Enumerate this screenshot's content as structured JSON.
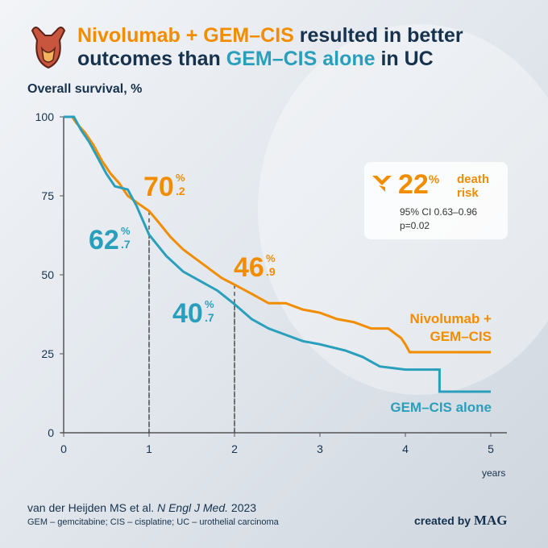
{
  "header": {
    "title_parts": [
      "Nivolumab + GEM–CIS",
      " resulted in better outcomes than ",
      "GEM–CIS alone",
      " in UC"
    ]
  },
  "chart_data": {
    "type": "line",
    "ylabel": "Overall survival, %",
    "xlabel": "years",
    "xlim": [
      0,
      5
    ],
    "ylim": [
      0,
      100
    ],
    "xticks": [
      0,
      1,
      2,
      3,
      4,
      5
    ],
    "yticks": [
      0,
      25,
      50,
      75,
      100
    ],
    "grid": false,
    "series": [
      {
        "name": "Nivolumab + GEM–CIS",
        "color": "#f28c00",
        "x": [
          0,
          0.1,
          0.15,
          0.25,
          0.35,
          0.45,
          0.55,
          0.65,
          0.75,
          0.85,
          1,
          1.1,
          1.25,
          1.4,
          1.55,
          1.7,
          1.85,
          2,
          2.2,
          2.4,
          2.6,
          2.8,
          3,
          3.2,
          3.4,
          3.6,
          3.8,
          3.95,
          4,
          4.05,
          4.5,
          5
        ],
        "values": [
          100,
          100,
          98,
          95,
          91,
          86,
          82,
          79,
          75,
          73,
          70.2,
          67,
          62,
          58,
          55,
          52,
          49,
          46.9,
          44,
          41,
          41,
          39,
          38,
          36,
          35,
          33,
          33,
          30,
          28,
          25.5,
          25.5,
          25.5
        ]
      },
      {
        "name": "GEM–CIS alone",
        "color": "#2a9fbc",
        "x": [
          0,
          0.12,
          0.2,
          0.3,
          0.4,
          0.5,
          0.6,
          0.75,
          0.85,
          1,
          1.2,
          1.4,
          1.6,
          1.8,
          2,
          2.2,
          2.4,
          2.6,
          2.8,
          3,
          3.3,
          3.5,
          3.7,
          4,
          4.4,
          4.4,
          5
        ],
        "values": [
          100,
          100,
          96,
          92,
          87,
          82,
          78,
          77,
          72,
          62.7,
          56,
          51,
          48,
          45,
          40.7,
          36,
          33,
          31,
          29,
          28,
          26,
          24,
          21,
          20,
          20,
          13,
          13
        ]
      }
    ],
    "annotations": [
      {
        "series": 0,
        "x": 1,
        "value": 70.2,
        "main": "70",
        "sup": "%",
        "sub": ".2"
      },
      {
        "series": 1,
        "x": 1,
        "value": 62.7,
        "main": "62",
        "sup": "%",
        "sub": ".7"
      },
      {
        "series": 0,
        "x": 2,
        "value": 46.9,
        "main": "46",
        "sup": "%",
        "sub": ".9"
      },
      {
        "series": 1,
        "x": 2,
        "value": 40.7,
        "main": "40",
        "sup": "%",
        "sub": ".7"
      }
    ],
    "hr_box": {
      "main": "22",
      "sup": "%",
      "label": "death risk",
      "ci": "95% CI 0.63–0.96",
      "p": "p=0.02"
    }
  },
  "footer": {
    "citation": [
      "van der Heijden MS et al. ",
      "N Engl J Med.",
      " 2023"
    ],
    "abbreviations": "GEM – gemcitabine; CIS – cisplatine; UC – urothelial carcinoma",
    "credit": "created by",
    "brand": "MAG"
  }
}
